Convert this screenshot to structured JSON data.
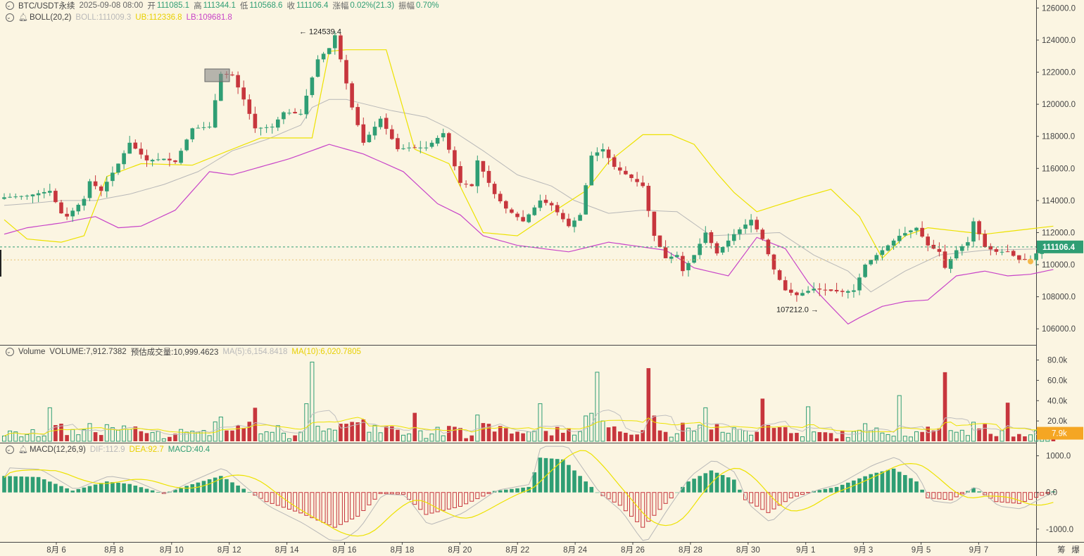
{
  "header": {
    "symbol": "BTC/USDT永续",
    "datetime": "2025-09-08 08:00",
    "open_label": "开",
    "open": "111085.1",
    "high_label": "高",
    "high": "111344.1",
    "low_label": "低",
    "low": "110568.6",
    "close_label": "收",
    "close": "111106.4",
    "change_label": "涨幅",
    "change": "0.02%(21.3)",
    "amp_label": "振幅",
    "amp": "0.70%"
  },
  "boll": {
    "name": "BOLL(20,2)",
    "mid": "BOLL:111009.3",
    "ub": "UB:112336.8",
    "lb": "LB:109681.8"
  },
  "volume_header": {
    "name": "Volume",
    "volume": "VOLUME:7,912.7382",
    "est": "预估成交量:10,999.4623",
    "ma5": "MA(5):6,154.8418",
    "ma10": "MA(10):6,020.7805"
  },
  "macd_header": {
    "name": "MACD(12,26,9)",
    "dif": "DIF:112.9",
    "dea": "DEA:92.7",
    "macd": "MACD:40.4"
  },
  "footer_labels": [
    "筹",
    "爆"
  ],
  "colors": {
    "up": "#2f9e74",
    "down": "#c7363d",
    "background": "#fbf5e2",
    "ub": "#ede200",
    "lb": "#c844c8",
    "mid": "#b8b8b8",
    "price_tag": "#2f9e74",
    "volume_tag": "#f5a623"
  },
  "chart_data": [
    {
      "type": "candlestick",
      "title": "BTC/USDT永续",
      "x_ticks": [
        "8月 6",
        "8月 8",
        "8月 10",
        "8月 12",
        "8月 14",
        "8月 16",
        "8月 18",
        "8月 20",
        "8月 22",
        "8月 24",
        "8月 26",
        "8月 28",
        "8月 30",
        "9月 1",
        "9月 3",
        "9月 5",
        "9月 7"
      ],
      "ylim": [
        105000,
        126500
      ],
      "y_ticks": [
        106000,
        108000,
        110000,
        112000,
        114000,
        116000,
        118000,
        120000,
        122000,
        124000,
        126000
      ],
      "y_tick_labels": [
        "106000.0",
        "108000.0",
        "110000.0",
        "112000.0",
        "114000.0",
        "116000.0",
        "118000.0",
        "120000.0",
        "122000.0",
        "124000.0",
        "126000.0"
      ],
      "current_price": "111106.4",
      "annotations": {
        "high": "124539.4",
        "low": "107212.0"
      },
      "anchors": [
        [
          0,
          114200
        ],
        [
          4,
          114300
        ],
        [
          8,
          114600
        ],
        [
          10,
          113200
        ],
        [
          11,
          113000
        ],
        [
          14,
          114100
        ],
        [
          15,
          115200
        ],
        [
          17,
          114600
        ],
        [
          20,
          116300
        ],
        [
          22,
          117600
        ],
        [
          25,
          116500
        ],
        [
          28,
          116600
        ],
        [
          30,
          116400
        ],
        [
          33,
          118500
        ],
        [
          36,
          118600
        ],
        [
          38,
          121900
        ],
        [
          40,
          121800
        ],
        [
          42,
          120300
        ],
        [
          44,
          118500
        ],
        [
          47,
          118600
        ],
        [
          49,
          119500
        ],
        [
          52,
          119400
        ],
        [
          55,
          122800
        ],
        [
          57,
          123500
        ],
        [
          58,
          124300
        ],
        [
          59,
          122800
        ],
        [
          61,
          119800
        ],
        [
          63,
          117600
        ],
        [
          66,
          119100
        ],
        [
          69,
          117200
        ],
        [
          71,
          117300
        ],
        [
          74,
          117300
        ],
        [
          77,
          118200
        ],
        [
          80,
          115100
        ],
        [
          82,
          114900
        ],
        [
          83,
          116500
        ],
        [
          86,
          114400
        ],
        [
          88,
          113500
        ],
        [
          91,
          112700
        ],
        [
          94,
          114000
        ],
        [
          96,
          113700
        ],
        [
          99,
          112400
        ],
        [
          101,
          113100
        ],
        [
          103,
          116800
        ],
        [
          105,
          117200
        ],
        [
          107,
          116100
        ],
        [
          110,
          115400
        ],
        [
          112,
          114900
        ],
        [
          114,
          111800
        ],
        [
          116,
          110400
        ],
        [
          118,
          110600
        ],
        [
          119,
          109600
        ],
        [
          121,
          110600
        ],
        [
          123,
          112000
        ],
        [
          125,
          110700
        ],
        [
          128,
          111900
        ],
        [
          131,
          112800
        ],
        [
          133,
          111600
        ],
        [
          135,
          109700
        ],
        [
          137,
          108400
        ],
        [
          139,
          108100
        ],
        [
          142,
          108500
        ],
        [
          144,
          108400
        ],
        [
          147,
          108300
        ],
        [
          149,
          108400
        ],
        [
          151,
          110000
        ],
        [
          154,
          110900
        ],
        [
          157,
          111800
        ],
        [
          160,
          112300
        ],
        [
          162,
          111200
        ],
        [
          164,
          110800
        ],
        [
          165,
          109800
        ],
        [
          167,
          110900
        ],
        [
          169,
          111400
        ],
        [
          170,
          112700
        ],
        [
          172,
          111100
        ],
        [
          174,
          110800
        ],
        [
          176,
          110800
        ],
        [
          178,
          110300
        ],
        [
          180,
          110300
        ],
        [
          182,
          111100
        ],
        [
          184,
          111100
        ]
      ],
      "series_ub_anchors": [
        [
          0,
          112800
        ],
        [
          4,
          111600
        ],
        [
          10,
          111400
        ],
        [
          14,
          111800
        ],
        [
          18,
          115500
        ],
        [
          24,
          116300
        ],
        [
          33,
          116200
        ],
        [
          40,
          117200
        ],
        [
          45,
          117900
        ],
        [
          54,
          117900
        ],
        [
          57,
          123300
        ],
        [
          60,
          123400
        ],
        [
          67,
          123400
        ],
        [
          72,
          117200
        ],
        [
          78,
          116300
        ],
        [
          84,
          112000
        ],
        [
          90,
          111800
        ],
        [
          95,
          113000
        ],
        [
          102,
          114600
        ],
        [
          106,
          116400
        ],
        [
          112,
          118100
        ],
        [
          117,
          118100
        ],
        [
          121,
          117500
        ],
        [
          125,
          115700
        ],
        [
          128,
          114500
        ],
        [
          132,
          113300
        ],
        [
          140,
          114200
        ],
        [
          145,
          114700
        ],
        [
          150,
          113000
        ],
        [
          154,
          110400
        ],
        [
          158,
          111800
        ],
        [
          162,
          112300
        ],
        [
          172,
          111900
        ],
        [
          184,
          112400
        ]
      ],
      "series_lb_anchors": [
        [
          0,
          111900
        ],
        [
          4,
          112300
        ],
        [
          10,
          112600
        ],
        [
          16,
          113000
        ],
        [
          20,
          112300
        ],
        [
          24,
          112400
        ],
        [
          30,
          113400
        ],
        [
          36,
          115800
        ],
        [
          40,
          115600
        ],
        [
          45,
          116100
        ],
        [
          50,
          116600
        ],
        [
          57,
          117500
        ],
        [
          63,
          116900
        ],
        [
          70,
          115800
        ],
        [
          76,
          113800
        ],
        [
          80,
          113100
        ],
        [
          84,
          111800
        ],
        [
          90,
          111200
        ],
        [
          99,
          110800
        ],
        [
          106,
          111400
        ],
        [
          116,
          110900
        ],
        [
          121,
          109800
        ],
        [
          127,
          109300
        ],
        [
          132,
          111700
        ],
        [
          137,
          111000
        ],
        [
          141,
          108900
        ],
        [
          145,
          107400
        ],
        [
          148,
          106300
        ],
        [
          150,
          106700
        ],
        [
          154,
          107400
        ],
        [
          158,
          107700
        ],
        [
          162,
          107800
        ],
        [
          167,
          109300
        ],
        [
          172,
          109600
        ],
        [
          176,
          109300
        ],
        [
          180,
          109400
        ],
        [
          184,
          109700
        ]
      ],
      "series_mid_anchors": [
        [
          0,
          113700
        ],
        [
          4,
          113800
        ],
        [
          10,
          114000
        ],
        [
          16,
          114000
        ],
        [
          22,
          114400
        ],
        [
          28,
          115000
        ],
        [
          34,
          115800
        ],
        [
          40,
          117100
        ],
        [
          46,
          117800
        ],
        [
          52,
          118700
        ],
        [
          54,
          119800
        ],
        [
          57,
          120300
        ],
        [
          60,
          120300
        ],
        [
          68,
          119600
        ],
        [
          74,
          119200
        ],
        [
          78,
          118500
        ],
        [
          84,
          117100
        ],
        [
          90,
          115600
        ],
        [
          96,
          114900
        ],
        [
          100,
          114000
        ],
        [
          106,
          113200
        ],
        [
          112,
          113400
        ],
        [
          118,
          113300
        ],
        [
          124,
          111800
        ],
        [
          130,
          111900
        ],
        [
          136,
          112000
        ],
        [
          142,
          110600
        ],
        [
          148,
          109600
        ],
        [
          152,
          108300
        ],
        [
          158,
          109600
        ],
        [
          164,
          110600
        ],
        [
          172,
          110900
        ],
        [
          184,
          111000
        ]
      ],
      "volume": {
        "ylim": [
          0,
          88000
        ],
        "y_tick_labels": [
          "20.0k",
          "40.0k",
          "60.0k",
          "80.0k"
        ],
        "y_ticks": [
          20000,
          40000,
          60000,
          80000
        ],
        "current": "7.9k"
      },
      "macd": {
        "ylim": [
          -1350,
          1300
        ],
        "y_tick_labels": [
          "-1000.0",
          "0.0",
          "1000.0"
        ],
        "y_ticks": [
          -1000,
          0,
          1000
        ]
      }
    }
  ]
}
